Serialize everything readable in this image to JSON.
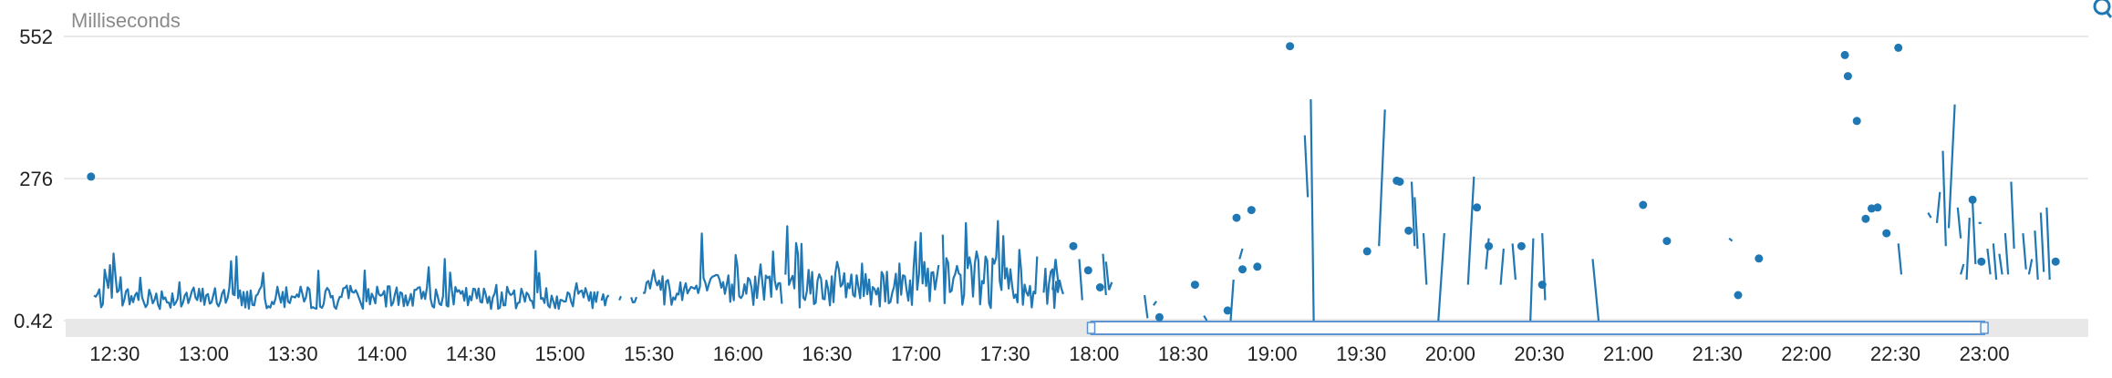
{
  "chart_data": {
    "type": "line",
    "ylabel": "Milliseconds",
    "y_ticks": [
      "552",
      "276",
      "0.42"
    ],
    "x_ticks": [
      "12:30",
      "13:00",
      "13:30",
      "14:00",
      "14:30",
      "15:00",
      "15:30",
      "16:00",
      "16:30",
      "17:00",
      "17:30",
      "18:00",
      "18:30",
      "19:00",
      "19:30",
      "20:00",
      "20:30",
      "21:00",
      "21:30",
      "22:00",
      "22:30",
      "23:00"
    ],
    "ylim": [
      0.42,
      552
    ],
    "xlim": [
      "12:20",
      "23:30"
    ],
    "grid": "horizontal",
    "series_color": "#1f77b4",
    "seed": 7,
    "segments": [
      {
        "start": "12:23",
        "end": "15:13",
        "base": 45,
        "noise": 22,
        "spike": 0.1,
        "spike_amp": 85
      },
      {
        "start": "15:14",
        "end": "15:17",
        "base": 48,
        "noise": 18,
        "spike": 0.0,
        "spike_amp": 0
      },
      {
        "start": "15:20",
        "end": "15:21",
        "base": 55,
        "noise": 20,
        "spike": 0.0,
        "spike_amp": 0
      },
      {
        "start": "15:24",
        "end": "15:26",
        "base": 50,
        "noise": 18,
        "spike": 0.0,
        "spike_amp": 0
      },
      {
        "start": "15:28",
        "end": "16:15",
        "base": 60,
        "noise": 32,
        "spike": 0.12,
        "spike_amp": 100
      },
      {
        "start": "16:16",
        "end": "17:08",
        "base": 70,
        "noise": 45,
        "spike": 0.15,
        "spike_amp": 140
      },
      {
        "start": "17:09",
        "end": "17:41",
        "base": 75,
        "noise": 50,
        "spike": 0.15,
        "spike_amp": 130
      },
      {
        "start": "17:43",
        "end": "17:50",
        "base": 70,
        "noise": 50,
        "spike": 0.1,
        "spike_amp": 100
      }
    ],
    "fragments": [
      [
        [
          "17:46",
          60
        ],
        [
          "17:47",
          120
        ],
        [
          "17:48",
          70
        ]
      ],
      [
        [
          "17:55",
          120
        ],
        [
          "17:56",
          40
        ]
      ],
      [
        [
          "18:03",
          130
        ],
        [
          "18:04",
          50
        ]
      ],
      [
        [
          "18:04",
          115
        ],
        [
          "18:05",
          60
        ],
        [
          "18:06",
          75
        ]
      ],
      [
        [
          "18:17",
          50
        ],
        [
          "18:18",
          5
        ]
      ],
      [
        [
          "18:20",
          30
        ],
        [
          "18:21",
          38
        ]
      ],
      [
        [
          "18:37",
          10
        ],
        [
          "18:38",
          0.42
        ]
      ],
      [
        [
          "18:46",
          0.42
        ],
        [
          "18:47",
          80
        ]
      ],
      [
        [
          "18:49",
          120
        ],
        [
          "18:50",
          140
        ]
      ],
      [
        [
          "19:11",
          360
        ],
        [
          "19:12",
          240
        ]
      ],
      [
        [
          "19:13",
          430
        ],
        [
          "19:14",
          0.42
        ]
      ],
      [
        [
          "19:36",
          145
        ],
        [
          "19:38",
          410
        ]
      ],
      [
        [
          "19:47",
          270
        ],
        [
          "19:48",
          145
        ]
      ],
      [
        [
          "19:48",
          240
        ],
        [
          "19:49",
          140
        ]
      ],
      [
        [
          "19:51",
          170
        ],
        [
          "19:52",
          70
        ]
      ],
      [
        [
          "19:56",
          0.42
        ],
        [
          "19:58",
          170
        ]
      ],
      [
        [
          "20:06",
          70
        ],
        [
          "20:08",
          280
        ]
      ],
      [
        [
          "20:12",
          100
        ],
        [
          "20:13",
          160
        ]
      ],
      [
        [
          "20:17",
          70
        ],
        [
          "20:18",
          140
        ]
      ],
      [
        [
          "20:21",
          150
        ],
        [
          "20:22",
          80
        ]
      ],
      [
        [
          "20:27",
          0.42
        ],
        [
          "20:28",
          160
        ]
      ],
      [
        [
          "20:31",
          170
        ],
        [
          "20:32",
          40
        ]
      ],
      [
        [
          "20:48",
          120
        ],
        [
          "20:50",
          0.42
        ]
      ],
      [
        [
          "21:34",
          160
        ],
        [
          "21:35",
          155
        ]
      ],
      [
        [
          "22:31",
          150
        ],
        [
          "22:32",
          90
        ]
      ],
      [
        [
          "22:41",
          210
        ],
        [
          "22:42",
          200
        ]
      ],
      [
        [
          "22:44",
          190
        ],
        [
          "22:45",
          250
        ]
      ],
      [
        [
          "22:46",
          330
        ],
        [
          "22:47",
          145
        ]
      ],
      [
        [
          "22:48",
          180
        ],
        [
          "22:50",
          420
        ]
      ],
      [
        [
          "22:51",
          220
        ],
        [
          "22:52",
          160
        ]
      ],
      [
        [
          "22:52",
          90
        ],
        [
          "22:53",
          110
        ]
      ],
      [
        [
          "22:54",
          80
        ],
        [
          "22:55",
          200
        ]
      ],
      [
        [
          "22:56",
          230
        ],
        [
          "22:57",
          110
        ]
      ],
      [
        [
          "22:58",
          190
        ],
        [
          "22:59",
          190
        ]
      ],
      [
        [
          "23:01",
          140
        ],
        [
          "23:02",
          90
        ]
      ],
      [
        [
          "23:03",
          150
        ],
        [
          "23:04",
          80
        ]
      ],
      [
        [
          "23:05",
          130
        ],
        [
          "23:06",
          90
        ]
      ],
      [
        [
          "23:07",
          170
        ],
        [
          "23:08",
          90
        ]
      ],
      [
        [
          "23:09",
          270
        ],
        [
          "23:10",
          140
        ]
      ],
      [
        [
          "23:13",
          170
        ],
        [
          "23:14",
          100
        ]
      ],
      [
        [
          "23:15",
          90
        ],
        [
          "23:16",
          120
        ]
      ],
      [
        [
          "23:17",
          175
        ],
        [
          "23:18",
          80
        ]
      ],
      [
        [
          "23:19",
          210
        ],
        [
          "23:20",
          95
        ]
      ],
      [
        [
          "23:21",
          220
        ],
        [
          "23:22",
          80
        ]
      ]
    ],
    "points": [
      [
        "12:22",
        280
      ],
      [
        "17:53",
        145
      ],
      [
        "17:58",
        98
      ],
      [
        "18:02",
        65
      ],
      [
        "18:22",
        7
      ],
      [
        "18:34",
        70
      ],
      [
        "18:45",
        20
      ],
      [
        "18:48",
        200
      ],
      [
        "18:50",
        100
      ],
      [
        "18:53",
        215
      ],
      [
        "18:55",
        105
      ],
      [
        "19:06",
        533
      ],
      [
        "19:32",
        135
      ],
      [
        "19:42",
        272
      ],
      [
        "19:43",
        270
      ],
      [
        "19:46",
        175
      ],
      [
        "20:09",
        220
      ],
      [
        "20:13",
        145
      ],
      [
        "20:24",
        145
      ],
      [
        "20:31",
        70
      ],
      [
        "21:05",
        225
      ],
      [
        "21:13",
        155
      ],
      [
        "21:37",
        50
      ],
      [
        "21:44",
        121
      ],
      [
        "22:13",
        516
      ],
      [
        "22:14",
        475
      ],
      [
        "22:17",
        388
      ],
      [
        "22:20",
        198
      ],
      [
        "22:22",
        218
      ],
      [
        "22:24",
        220
      ],
      [
        "22:27",
        170
      ],
      [
        "22:31",
        530
      ],
      [
        "22:56",
        235
      ],
      [
        "22:59",
        115
      ],
      [
        "23:24",
        115
      ]
    ],
    "navigator": {
      "start": "17:59",
      "end": "23:00"
    }
  }
}
